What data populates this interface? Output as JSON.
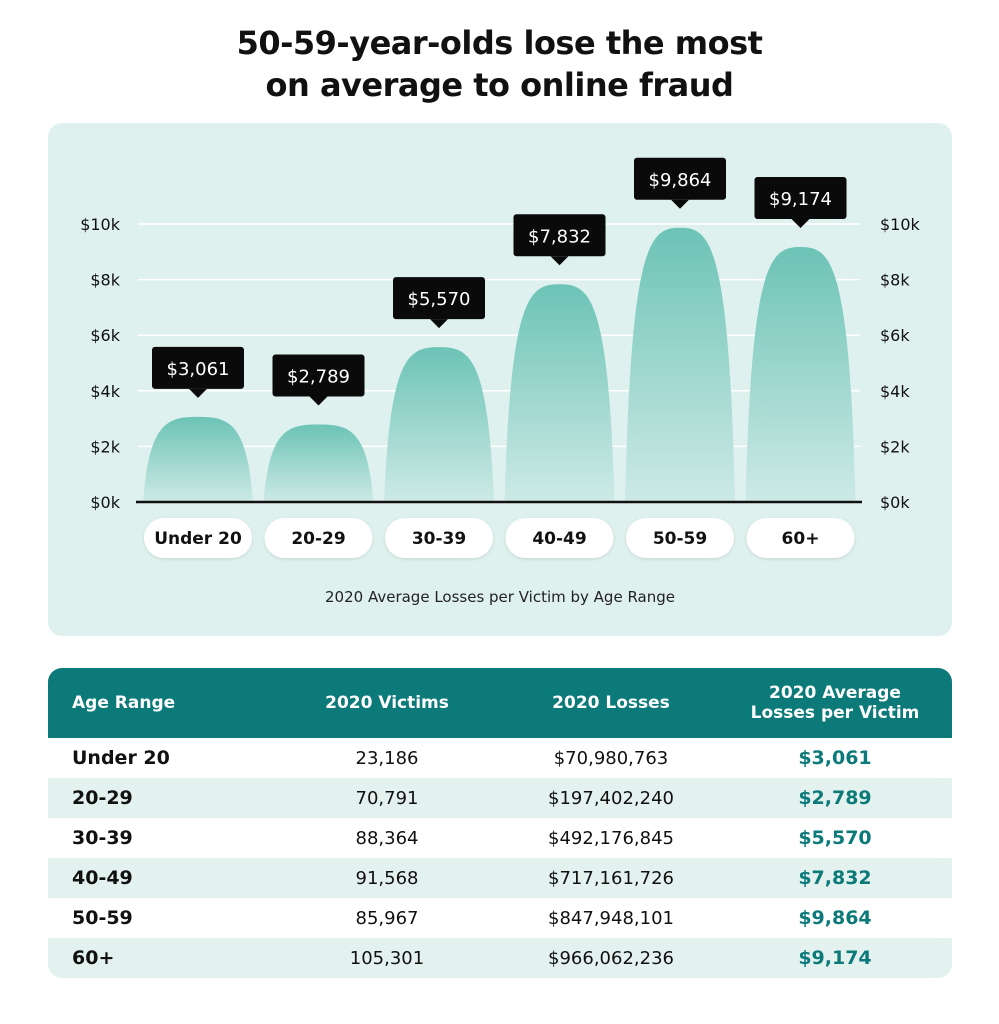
{
  "title_line1": "50-59-year-olds lose the most",
  "title_line2": "on average to online fraud",
  "caption": "2020 Average Losses per Victim by Age Range",
  "colors": {
    "panel_bg": "#dff1ee",
    "bar_top": "#6cc3b6",
    "bar_bottom": "#cdeae5",
    "callout_bg": "#0a0a0a",
    "table_header": "#0d7a7a",
    "accent_text": "#0d7a7a"
  },
  "chart_data": {
    "type": "bar",
    "categories": [
      "Under 20",
      "20-29",
      "30-39",
      "40-49",
      "50-59",
      "60+"
    ],
    "values": [
      3061,
      2789,
      5570,
      7832,
      9864,
      9174
    ],
    "value_labels": [
      "$3,061",
      "$2,789",
      "$5,570",
      "$7,832",
      "$9,864",
      "$9,174"
    ],
    "yticks": [
      0,
      2000,
      4000,
      6000,
      8000,
      10000
    ],
    "ytick_labels": [
      "$0k",
      "$2k",
      "$4k",
      "$6k",
      "$8k",
      "$10k"
    ],
    "ylim": [
      0,
      10000
    ],
    "axes": "left-and-right",
    "gridlines": true
  },
  "table": {
    "headers": [
      "Age Range",
      "2020 Victims",
      "2020 Losses",
      "2020 Average Losses per Victim"
    ],
    "rows": [
      [
        "Under 20",
        "23,186",
        "$70,980,763",
        "$3,061"
      ],
      [
        "20-29",
        "70,791",
        "$197,402,240",
        "$2,789"
      ],
      [
        "30-39",
        "88,364",
        "$492,176,845",
        "$5,570"
      ],
      [
        "40-49",
        "91,568",
        "$717,161,726",
        "$7,832"
      ],
      [
        "50-59",
        "85,967",
        "$847,948,101",
        "$9,864"
      ],
      [
        "60+",
        "105,301",
        "$966,062,236",
        "$9,174"
      ]
    ]
  }
}
